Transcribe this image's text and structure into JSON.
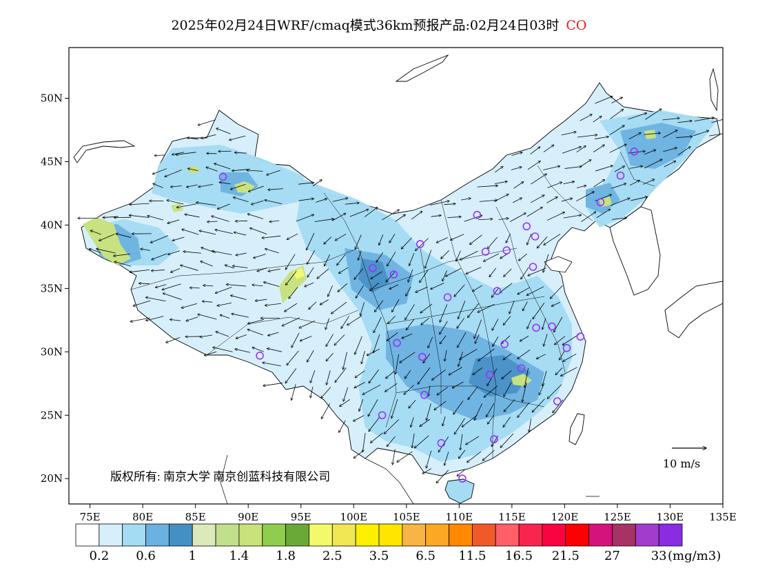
{
  "title": {
    "text": "2025年02月24日WRF/cmaq模式36km预报产品:02月24日03时",
    "species": "CO"
  },
  "map": {
    "lon_range": [
      73,
      135
    ],
    "lat_range": [
      18,
      54
    ],
    "lon_ticks": [
      "75E",
      "80E",
      "85E",
      "90E",
      "95E",
      "100E",
      "105E",
      "110E",
      "115E",
      "120E",
      "125E",
      "130E",
      "135E"
    ],
    "lat_ticks": [
      "20N",
      "25N",
      "30N",
      "35N",
      "40N",
      "45N",
      "50N"
    ],
    "copyright": "版权所有: 南京大学  南京创蓝科技有限公司",
    "wind_scale_label": "10 m/s",
    "colors": {
      "ocean": "#ffffff",
      "land_low": "#d6effb",
      "land_mid": "#a4dcf4",
      "land_high": "#6bb1e1",
      "land_peak": "#448fc6",
      "hotspot": "#c8e27c",
      "station": "#9b30ff"
    },
    "stations": [
      [
        87.6,
        43.8
      ],
      [
        91.1,
        29.7
      ],
      [
        101.8,
        36.6
      ],
      [
        103.8,
        36.1
      ],
      [
        106.3,
        38.5
      ],
      [
        111.7,
        40.8
      ],
      [
        116.4,
        39.9
      ],
      [
        117.2,
        39.1
      ],
      [
        114.5,
        38.0
      ],
      [
        112.5,
        37.9
      ],
      [
        117.0,
        36.7
      ],
      [
        113.6,
        34.8
      ],
      [
        108.9,
        34.3
      ],
      [
        104.1,
        30.7
      ],
      [
        106.5,
        29.6
      ],
      [
        106.7,
        26.6
      ],
      [
        102.7,
        25.0
      ],
      [
        108.3,
        22.8
      ],
      [
        110.3,
        20.0
      ],
      [
        113.3,
        23.1
      ],
      [
        112.9,
        28.2
      ],
      [
        115.9,
        28.7
      ],
      [
        114.3,
        30.6
      ],
      [
        117.3,
        31.9
      ],
      [
        118.8,
        32.0
      ],
      [
        120.2,
        30.3
      ],
      [
        121.5,
        31.2
      ],
      [
        119.3,
        26.1
      ],
      [
        123.4,
        41.8
      ],
      [
        125.3,
        43.9
      ],
      [
        126.6,
        45.8
      ]
    ]
  },
  "legend": {
    "colors": [
      "#ffffff",
      "#d6effb",
      "#a4dcf4",
      "#6bb1e1",
      "#448fc6",
      "#dce9b9",
      "#c2df8c",
      "#c8e27c",
      "#8fcd4d",
      "#6aa837",
      "#f2fa6a",
      "#f1e654",
      "#ffef00",
      "#ffe500",
      "#f8b444",
      "#fda824",
      "#ff8a00",
      "#f05a28",
      "#ff5f67",
      "#f8264e",
      "#f90440",
      "#ff0000",
      "#d5137d",
      "#a73364",
      "#a23ccd",
      "#8b2be2"
    ],
    "labels": [
      "0.2",
      "0.6",
      "1",
      "1.4",
      "1.8",
      "2.5",
      "3.5",
      "6.5",
      "11.5",
      "16.5",
      "21.5",
      "27",
      "33"
    ],
    "unit": "(mg/m3)"
  }
}
